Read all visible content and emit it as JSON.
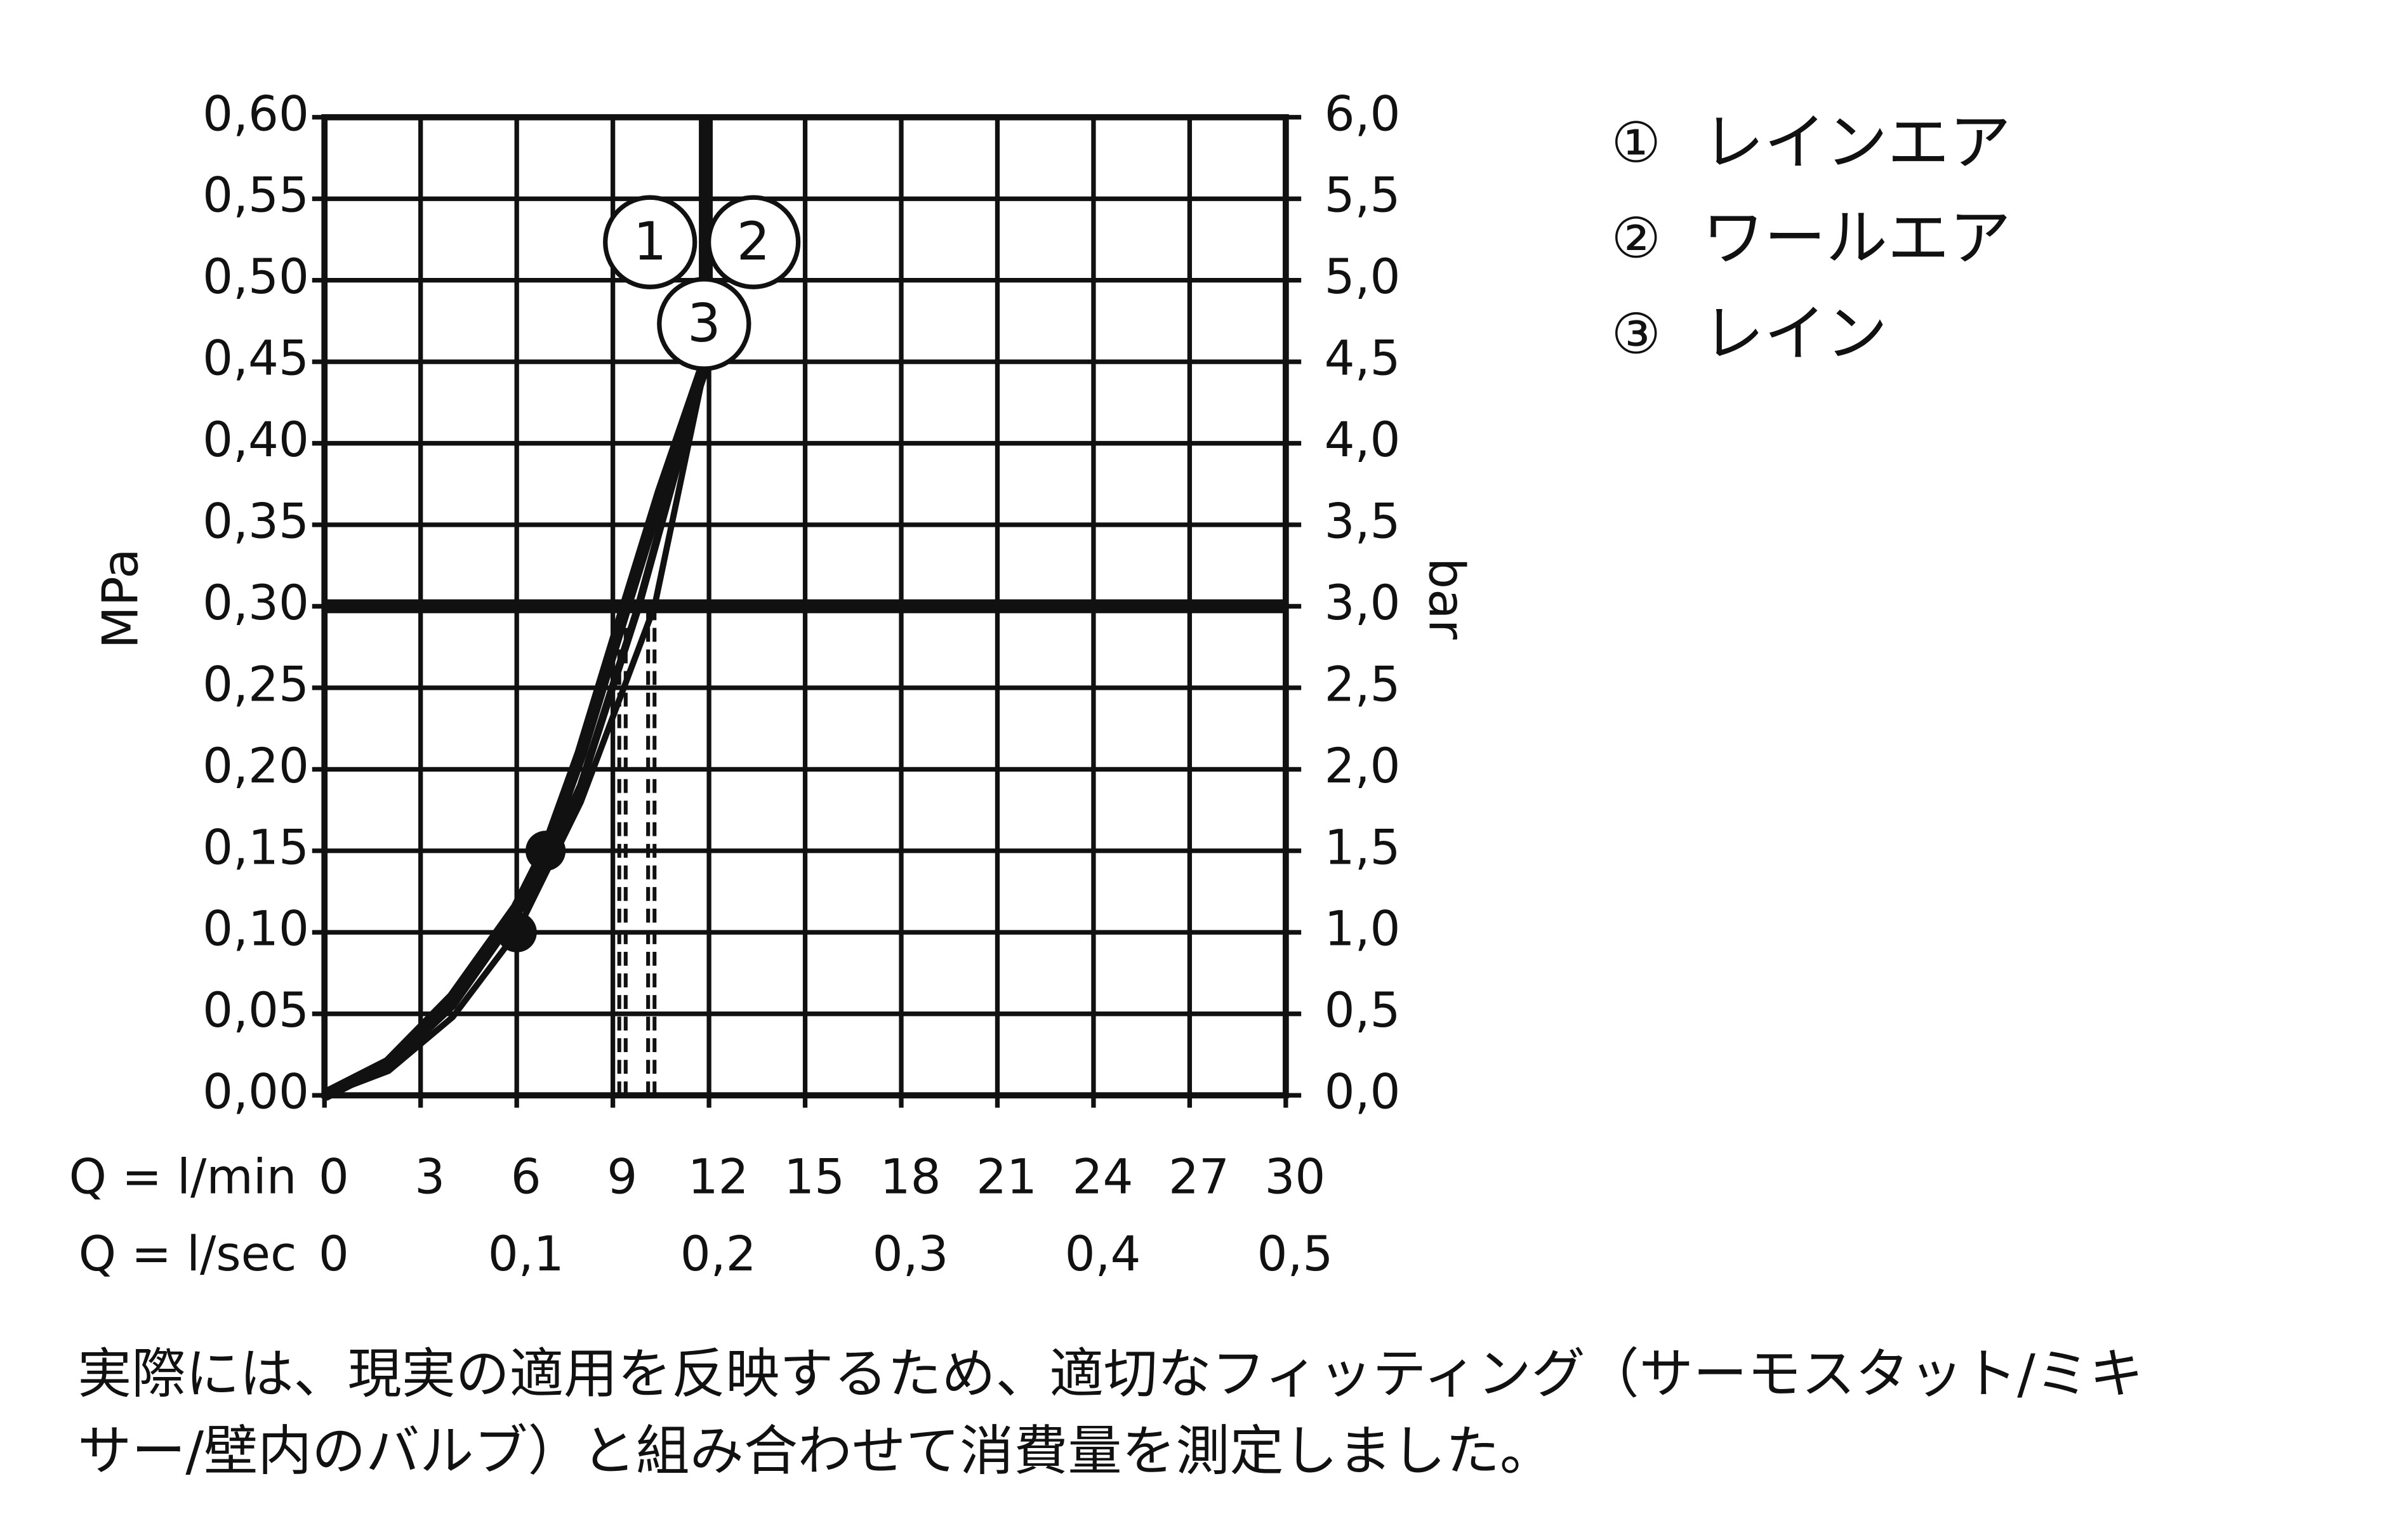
{
  "chart_data": {
    "type": "line",
    "y_label": "MPa",
    "y2_label": "bar",
    "x_label": "Q = l/min",
    "x2_label": "Q = l/sec",
    "xlim": [
      0,
      30
    ],
    "xticks": [
      0,
      3,
      6,
      9,
      12,
      15,
      18,
      21,
      24,
      27,
      30
    ],
    "x2lim": [
      0,
      0.5
    ],
    "x2ticks": [
      0,
      {
        "value": 0.1,
        "label": "0,1"
      },
      {
        "value": 0.2,
        "label": "0,2"
      },
      {
        "value": 0.3,
        "label": "0,3"
      },
      {
        "value": 0.4,
        "label": "0,4"
      },
      {
        "value": 0.5,
        "label": "0,5"
      }
    ],
    "ylim": [
      0,
      0.6
    ],
    "yticks": [
      {
        "value": 0,
        "label": "0,00"
      },
      {
        "value": 0.05,
        "label": "0,05"
      },
      {
        "value": 0.1,
        "label": "0,10"
      },
      {
        "value": 0.15,
        "label": "0,15"
      },
      {
        "value": 0.2,
        "label": "0,20"
      },
      {
        "value": 0.25,
        "label": "0,25"
      },
      {
        "value": 0.3,
        "label": "0,30"
      },
      {
        "value": 0.35,
        "label": "0,35"
      },
      {
        "value": 0.4,
        "label": "0,40"
      },
      {
        "value": 0.45,
        "label": "0,45"
      },
      {
        "value": 0.5,
        "label": "0,50"
      },
      {
        "value": 0.55,
        "label": "0,55"
      },
      {
        "value": 0.6,
        "label": "0,60"
      }
    ],
    "y2lim": [
      0,
      6
    ],
    "y2ticks": [
      {
        "value": 0,
        "label": "0,0"
      },
      {
        "value": 0.5,
        "label": "0,5"
      },
      {
        "value": 1,
        "label": "1,0"
      },
      {
        "value": 1.5,
        "label": "1,5"
      },
      {
        "value": 2,
        "label": "2,0"
      },
      {
        "value": 2.5,
        "label": "2,5"
      },
      {
        "value": 3,
        "label": "3,0"
      },
      {
        "value": 3.5,
        "label": "3,5"
      },
      {
        "value": 4,
        "label": "4,0"
      },
      {
        "value": 4.5,
        "label": "4,5"
      },
      {
        "value": 5,
        "label": "5,0"
      },
      {
        "value": 5.5,
        "label": "5,5"
      },
      {
        "value": 6,
        "label": "6,0"
      }
    ],
    "grid": true,
    "color": "#111111",
    "reference_y": 0.3,
    "reference_x": 11.9,
    "dashed_x": [
      9.2,
      9.4,
      10.1,
      10.3
    ],
    "series": [
      {
        "name": "レインエア",
        "symbol": "①",
        "curve_label": "1",
        "color": "#111111",
        "x": [
          0,
          2,
          4,
          6,
          6.9,
          8,
          9.4,
          10.5,
          11.9
        ],
        "values": [
          0,
          0.02,
          0.06,
          0.115,
          0.15,
          0.21,
          0.3,
          0.37,
          0.45
        ],
        "markers": {
          "x": [
            6.9
          ],
          "values": [
            0.15
          ]
        }
      },
      {
        "name": "ワールエア",
        "symbol": "②",
        "curve_label": "2",
        "color": "#111111",
        "x": [
          0,
          2,
          4,
          6,
          8,
          10.3,
          11.9
        ],
        "values": [
          0,
          0.015,
          0.048,
          0.1,
          0.18,
          0.3,
          0.45
        ],
        "markers": {
          "x": [
            6
          ],
          "values": [
            0.1
          ]
        }
      },
      {
        "name": "レイン",
        "symbol": "③",
        "curve_label": "3",
        "color": "#111111",
        "x": [
          0,
          2,
          4,
          6.5,
          8,
          9.8,
          11.9
        ],
        "values": [
          0,
          0.018,
          0.055,
          0.125,
          0.19,
          0.3,
          0.45
        ]
      }
    ],
    "footnote": [
      "実際には、現実の適用を反映するため、適切なフィッティング（サーモスタット/ミキ",
      "サー/壁内のバルブ）と組み合わせて消費量を測定しました。"
    ]
  }
}
